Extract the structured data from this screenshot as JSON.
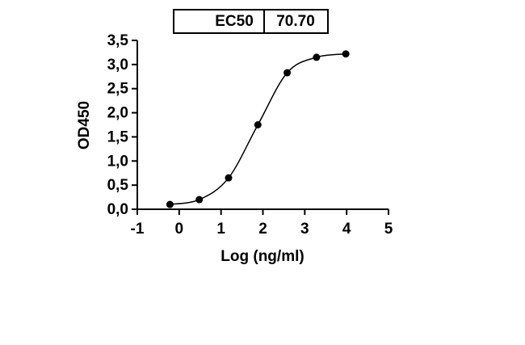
{
  "chart_data": {
    "type": "scatter",
    "annotation": {
      "label": "EC50",
      "value": "70.70"
    },
    "x_label": "Log (ng/ml)",
    "y_label": "OD450",
    "series": [
      {
        "color": "#000000",
        "x": [
          -0.22,
          0.48,
          1.18,
          1.88,
          2.58,
          3.28,
          3.98
        ],
        "values": [
          0.1,
          0.2,
          0.65,
          1.75,
          2.83,
          3.15,
          3.22
        ]
      }
    ],
    "xlim": [
      -1,
      5
    ],
    "xticks": [
      -1,
      0,
      1,
      2,
      3,
      4,
      5
    ],
    "ylim": [
      0,
      3.5
    ],
    "yticks": [
      {
        "value": 0,
        "label": "0,0"
      },
      {
        "value": 0.5,
        "label": "0,5"
      },
      {
        "value": 1,
        "label": "1,0"
      },
      {
        "value": 1.5,
        "label": "1,5"
      },
      {
        "value": 2,
        "label": "2,0"
      },
      {
        "value": 2.5,
        "label": "2,5"
      },
      {
        "value": 3,
        "label": "3,0"
      },
      {
        "value": 3.5,
        "label": "3,5"
      }
    ]
  }
}
